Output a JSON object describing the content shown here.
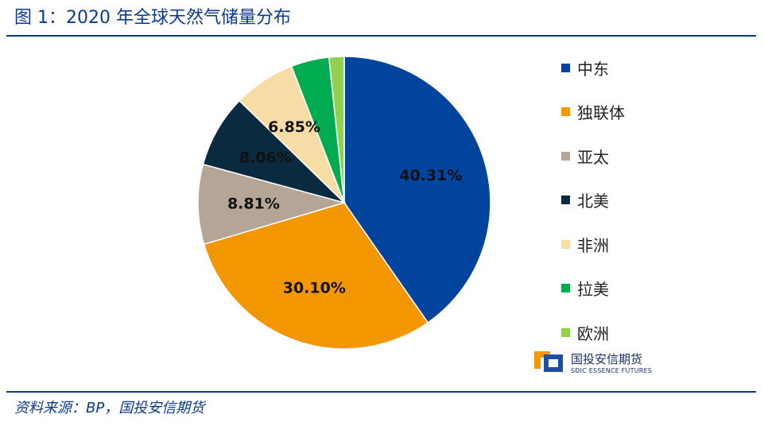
{
  "header": {
    "title": "图 1：2020 年全球天然气储量分布"
  },
  "footer": {
    "source": "资料来源：BP，国投安信期货"
  },
  "logo": {
    "name": "国投安信期货",
    "english": "SDIC ESSENCE FUTURES"
  },
  "chart_data": {
    "type": "pie",
    "title": "",
    "legend_position": "right",
    "categories": [
      "中东",
      "独联体",
      "亚太",
      "北美",
      "非洲",
      "拉美",
      "欧洲"
    ],
    "values": [
      40.31,
      30.1,
      8.81,
      8.06,
      6.85,
      4.2,
      1.67
    ],
    "data_labels": [
      "40.31%",
      "30.10%",
      "8.81%",
      "8.06%",
      "6.85%",
      "",
      ""
    ],
    "colors": [
      "#00449e",
      "#f29700",
      "#b4a596",
      "#0a2a40",
      "#f8dca6",
      "#00ac4f",
      "#92d050"
    ]
  }
}
